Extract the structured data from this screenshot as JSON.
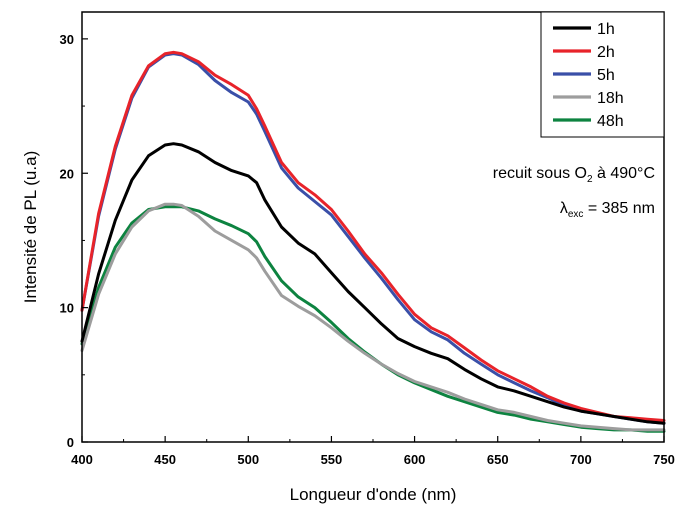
{
  "chart_data": {
    "type": "line",
    "title": "",
    "xlabel": "Longueur d'onde (nm)",
    "ylabel": "Intensité de PL (u.a)",
    "xlim": [
      400,
      750
    ],
    "ylim": [
      0,
      32
    ],
    "xticks": [
      400,
      450,
      500,
      550,
      600,
      650,
      700,
      750
    ],
    "yticks": [
      0,
      10,
      20,
      30
    ],
    "grid": false,
    "legend_position": "top-right",
    "x": [
      400,
      410,
      420,
      430,
      440,
      450,
      455,
      460,
      470,
      480,
      490,
      500,
      505,
      510,
      520,
      530,
      540,
      550,
      560,
      570,
      580,
      590,
      600,
      610,
      620,
      630,
      640,
      650,
      660,
      670,
      680,
      690,
      700,
      710,
      720,
      730,
      740,
      750
    ],
    "series": [
      {
        "name": "1h",
        "color": "#000000",
        "values": [
          7.5,
          12.5,
          16.5,
          19.5,
          21.3,
          22.1,
          22.2,
          22.1,
          21.6,
          20.8,
          20.2,
          19.8,
          19.3,
          18.0,
          16.0,
          14.8,
          14.0,
          12.6,
          11.2,
          10.0,
          8.8,
          7.7,
          7.1,
          6.6,
          6.2,
          5.4,
          4.7,
          4.1,
          3.8,
          3.4,
          3.0,
          2.6,
          2.3,
          2.1,
          1.9,
          1.7,
          1.5,
          1.4
        ]
      },
      {
        "name": "2h",
        "color": "#e8232a",
        "values": [
          9.8,
          17.0,
          22.0,
          25.8,
          28.0,
          28.9,
          29.0,
          28.9,
          28.3,
          27.3,
          26.6,
          25.8,
          24.8,
          23.5,
          20.8,
          19.3,
          18.4,
          17.3,
          15.7,
          14.0,
          12.6,
          11.0,
          9.5,
          8.5,
          7.9,
          7.0,
          6.1,
          5.3,
          4.7,
          4.1,
          3.4,
          2.9,
          2.5,
          2.2,
          1.9,
          1.8,
          1.7,
          1.6
        ]
      },
      {
        "name": "5h",
        "color": "#3a4fa8",
        "values": [
          9.8,
          16.8,
          21.8,
          25.6,
          27.9,
          28.8,
          28.9,
          28.8,
          28.1,
          26.9,
          26.0,
          25.3,
          24.4,
          23.1,
          20.4,
          18.9,
          17.9,
          16.9,
          15.3,
          13.7,
          12.2,
          10.6,
          9.1,
          8.2,
          7.6,
          6.6,
          5.8,
          5.0,
          4.4,
          3.8,
          3.3,
          2.7,
          2.3,
          2.1,
          1.9,
          1.7,
          1.5,
          1.4
        ]
      },
      {
        "name": "18h",
        "color": "#9d9d9d",
        "values": [
          6.8,
          11.0,
          14.0,
          16.0,
          17.2,
          17.7,
          17.7,
          17.6,
          16.8,
          15.7,
          15.0,
          14.3,
          13.7,
          12.7,
          10.9,
          10.1,
          9.4,
          8.5,
          7.5,
          6.6,
          5.8,
          5.1,
          4.5,
          4.1,
          3.7,
          3.2,
          2.8,
          2.4,
          2.2,
          1.9,
          1.6,
          1.4,
          1.2,
          1.1,
          1.0,
          0.9,
          0.9,
          0.9
        ]
      },
      {
        "name": "48h",
        "color": "#0d8340",
        "values": [
          7.3,
          11.5,
          14.5,
          16.3,
          17.3,
          17.5,
          17.5,
          17.5,
          17.2,
          16.6,
          16.1,
          15.5,
          14.9,
          13.8,
          12.0,
          10.8,
          10.0,
          8.9,
          7.7,
          6.7,
          5.8,
          5.0,
          4.4,
          3.9,
          3.4,
          3.0,
          2.6,
          2.2,
          2.0,
          1.7,
          1.5,
          1.3,
          1.1,
          1.0,
          0.9,
          0.9,
          0.8,
          0.8
        ]
      }
    ],
    "annotations": [
      {
        "id": "recuit",
        "prefix": "recuit sous O",
        "sub": "2",
        "suffix": " à 490°C"
      },
      {
        "id": "lambda",
        "prefix": "λ",
        "sub": "exc",
        "suffix": " = 385 nm"
      }
    ]
  }
}
